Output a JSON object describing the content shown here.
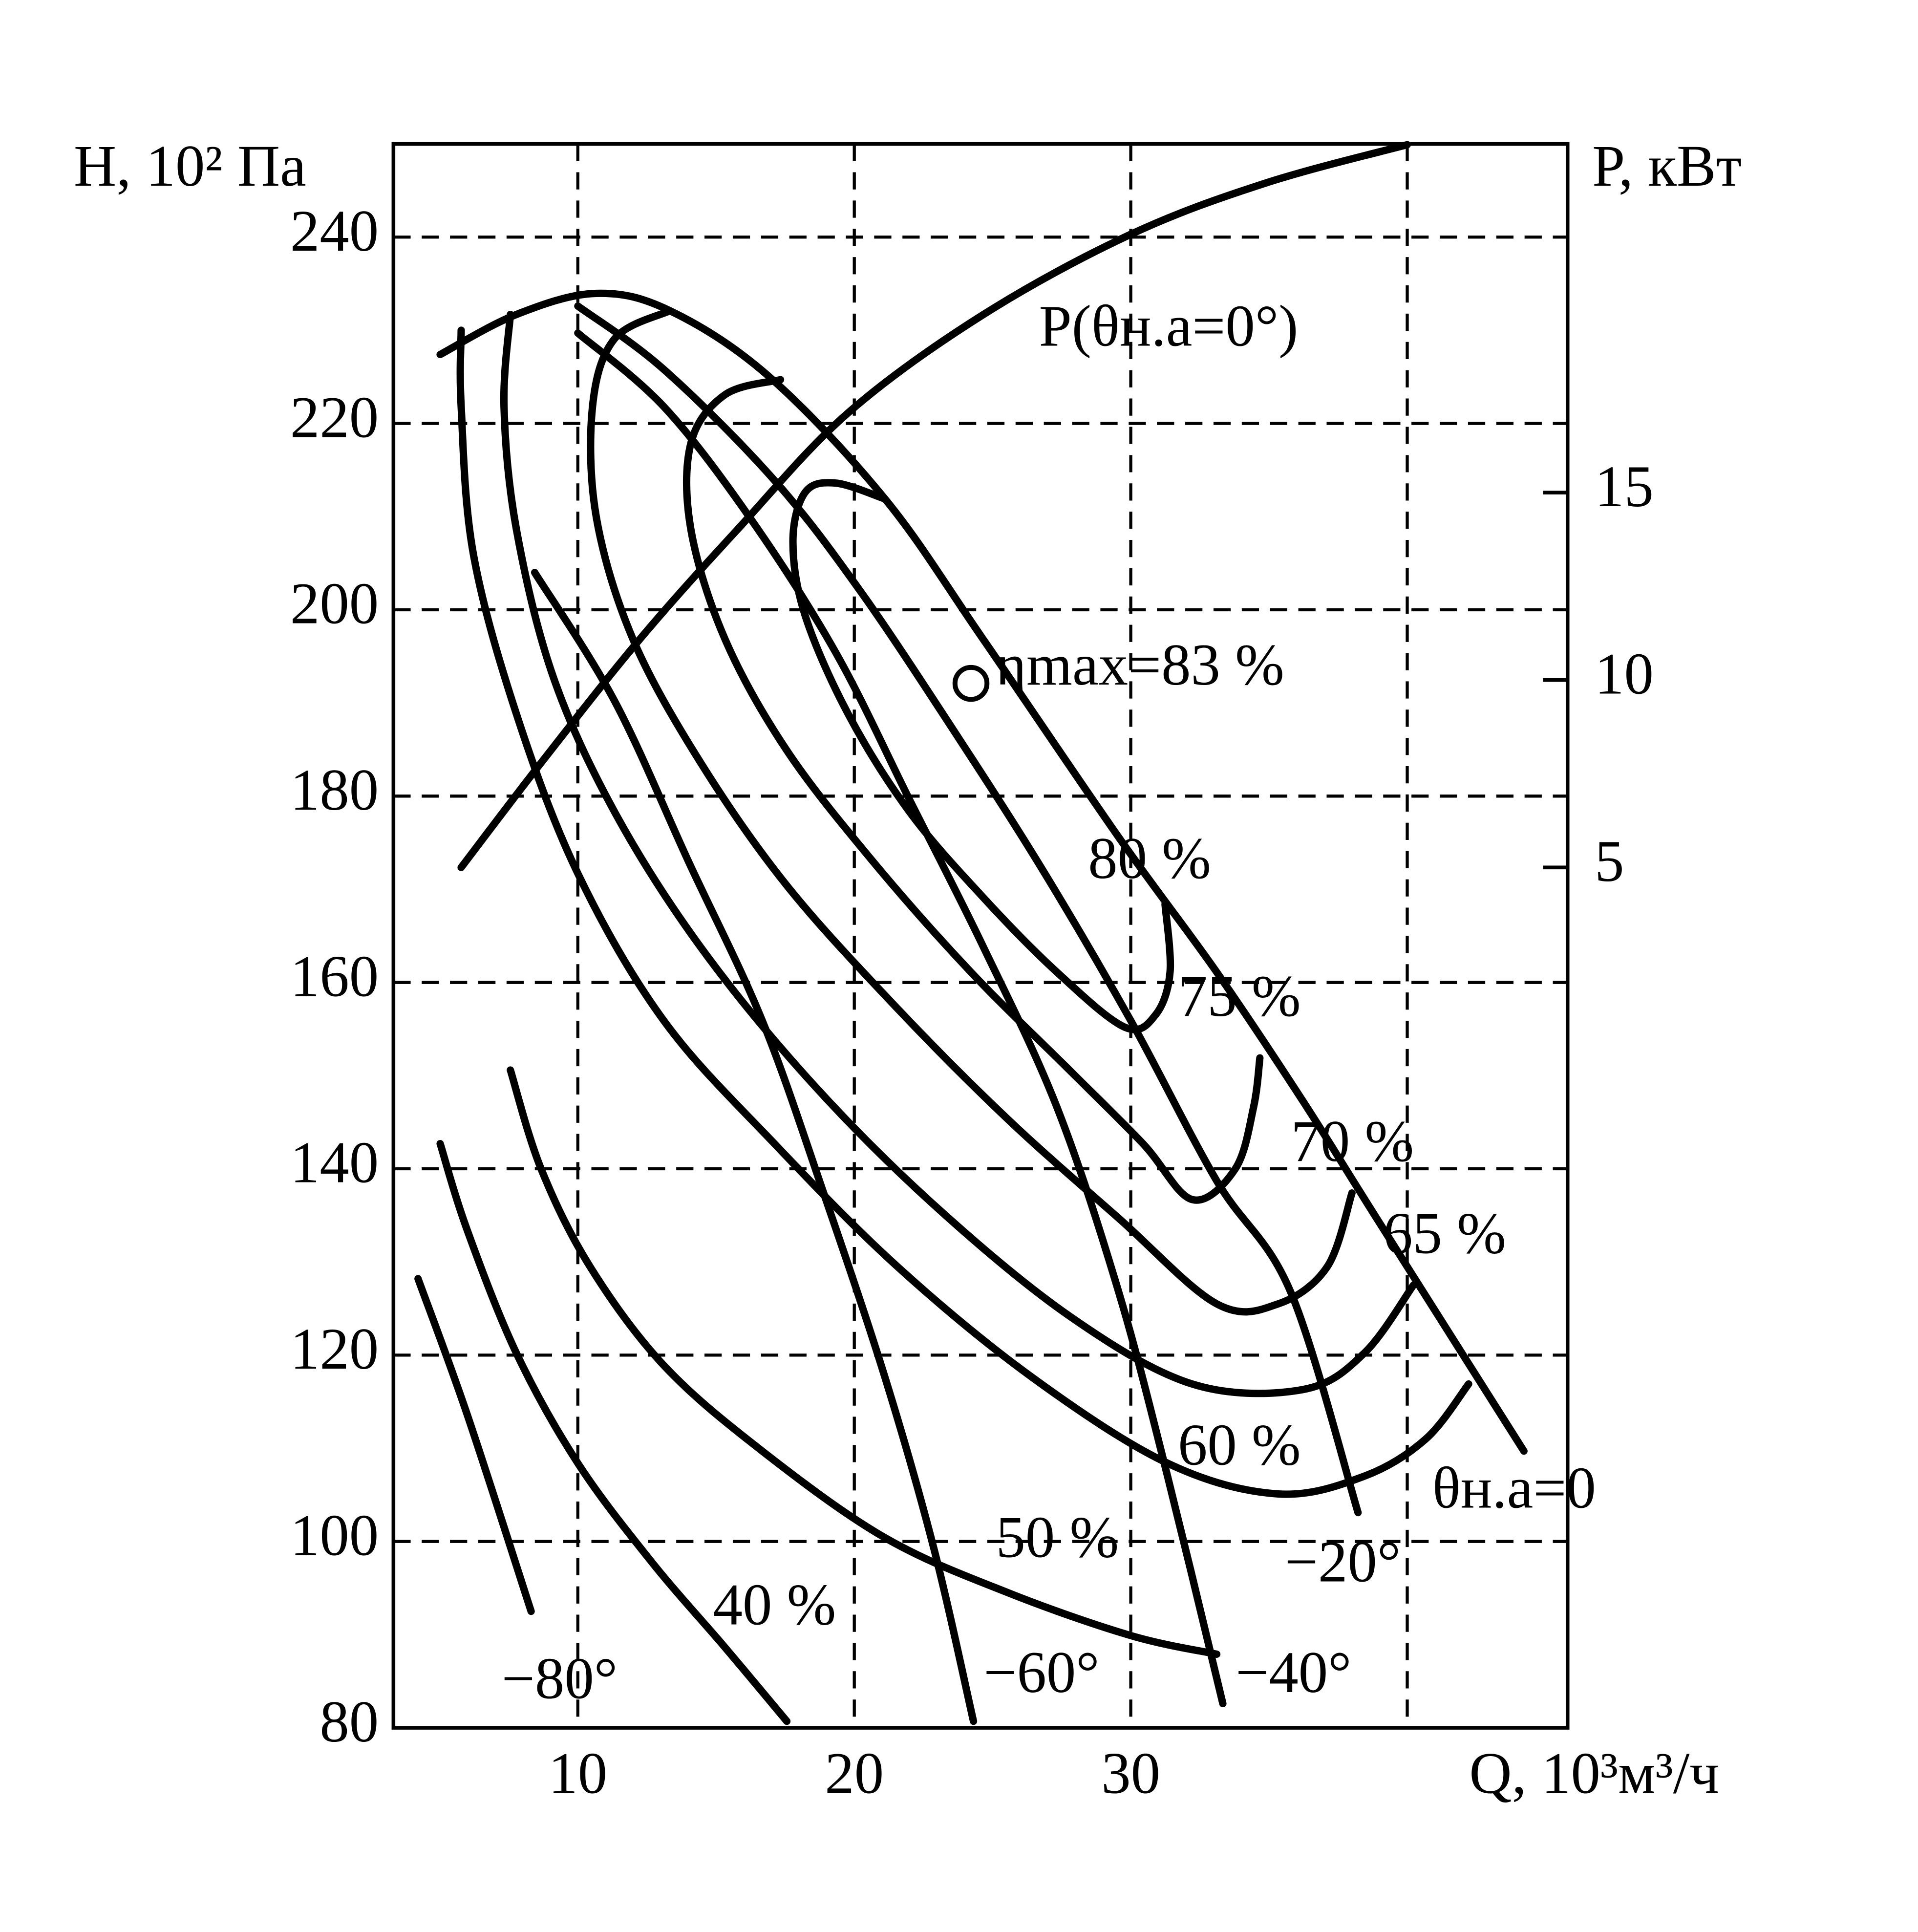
{
  "chart_data": {
    "type": "line",
    "y_label": "H, 10² Па",
    "y2_label": "P, кВт",
    "x_label": "Q, 10³м³/ч",
    "xlim": [
      3.33,
      45.8
    ],
    "xticks": [
      10,
      20,
      30
    ],
    "xgrid": [
      10,
      20,
      30,
      40
    ],
    "ylim": [
      80,
      250
    ],
    "yticks": [
      80,
      100,
      120,
      140,
      160,
      180,
      200,
      220,
      240
    ],
    "y2lim": [
      -17.95,
      24.3
    ],
    "y2ticks": [
      5,
      10,
      15
    ],
    "grid": true,
    "color": "#000000",
    "series": [
      {
        "name": "θн.а=0",
        "x": [
          5.02,
          7.78,
          10.67,
          13.33,
          16.89,
          21.11,
          24.67,
          29.56,
          33.11,
          36.22,
          38.89,
          44.22
        ],
        "y": [
          227.4,
          231.7,
          233.96,
          232.1,
          225.1,
          211.9,
          196.8,
          175.6,
          161.1,
          147.3,
          134.7,
          109.7
        ]
      },
      {
        "name": "−20°",
        "x": [
          10,
          13.11,
          17.11,
          20.22,
          23.78,
          26.89,
          30,
          33.11,
          35.78,
          38.22
        ],
        "y": [
          232.6,
          225.8,
          213.9,
          202.0,
          186.2,
          171.7,
          155.9,
          138.7,
          126.8,
          103.1
        ]
      },
      {
        "name": "−40°",
        "x": [
          10,
          13.11,
          16.22,
          19.33,
          22,
          24.67,
          27.33,
          29.56,
          31.33,
          33.33
        ],
        "y": [
          229.7,
          221.8,
          209.9,
          195.4,
          179.6,
          163.8,
          146.6,
          126.8,
          107.0,
          82.6
        ]
      },
      {
        "name": "−60°",
        "x": [
          8.44,
          11.33,
          14,
          16.67,
          18.89,
          21.11,
          22.89,
          24.31
        ],
        "y": [
          204.0,
          190.2,
          173.0,
          155.9,
          137.4,
          117.6,
          99.1,
          80.7
        ]
      },
      {
        "name": "−80°",
        "x": [
          4.22,
          6.0,
          8.31
        ],
        "y": [
          128.2,
          113.6,
          92.5
        ]
      },
      {
        "name": "80 %",
        "x": [
          21.11,
          19.33,
          18.22,
          17.78,
          18.22,
          19.78,
          22,
          24.67,
          27.33,
          29.78,
          30.89,
          31.42,
          31.24
        ],
        "y": [
          211.9,
          213.6,
          212.6,
          207.3,
          199.4,
          188.8,
          178.3,
          169.1,
          161.1,
          155.2,
          156.5,
          161.1,
          168.4
        ]
      },
      {
        "name": "75 %",
        "x": [
          17.33,
          15.33,
          14.09,
          14.09,
          15.33,
          17.56,
          20.67,
          24.22,
          27.78,
          30.44,
          32.22,
          33.78,
          34.44,
          34.67
        ],
        "y": [
          224.7,
          223.1,
          217.9,
          208.6,
          196.8,
          184.9,
          173.0,
          161.1,
          150.6,
          142.7,
          136.7,
          140.0,
          146.6,
          151.9
        ]
      },
      {
        "name": "70 %",
        "x": [
          13.33,
          11.33,
          10.53,
          10.67,
          12,
          14.44,
          17.56,
          21.56,
          25.56,
          29.56,
          33.11,
          35.33,
          37.11,
          38
        ],
        "y": [
          232.1,
          229.1,
          221.8,
          209.9,
          196.8,
          183.6,
          170.4,
          157.2,
          145.3,
          134.7,
          125.5,
          125.5,
          129.5,
          137.4
        ]
      },
      {
        "name": "65 %",
        "x": [
          7.56,
          7.33,
          7.78,
          9.11,
          11.33,
          14.44,
          18.44,
          22.89,
          27.78,
          32.22,
          36.22,
          38.44,
          40.22
        ],
        "y": [
          231.7,
          221.8,
          208.6,
          192.8,
          178.3,
          163.8,
          149.3,
          136.1,
          124.2,
          116.9,
          116.3,
          120.2,
          127.5
        ]
      },
      {
        "name": "60 %",
        "x": [
          5.78,
          5.78,
          6.22,
          7.78,
          10,
          13.11,
          17.11,
          21.56,
          26.44,
          31.33,
          35.33,
          38.44,
          40.67,
          42.22
        ],
        "y": [
          230.0,
          221.8,
          206.0,
          188.8,
          171.7,
          155.9,
          142.7,
          129.5,
          117.6,
          108.4,
          105.1,
          107.0,
          111.0,
          116.9
        ]
      },
      {
        "name": "50 %",
        "x": [
          7.56,
          8.67,
          10.44,
          13.11,
          16.67,
          21.11,
          25.56,
          30,
          33.11
        ],
        "y": [
          150.6,
          140.0,
          129.5,
          118.9,
          109.7,
          100.4,
          94.5,
          89.9,
          87.9
        ]
      },
      {
        "name": "40 %",
        "x": [
          5.02,
          6.0,
          7.78,
          10,
          12.67,
          15.33,
          17.56
        ],
        "y": [
          142.7,
          133.4,
          120.2,
          108.4,
          97.8,
          88.6,
          80.7
        ]
      },
      {
        "name": "P(θн.а=0°)",
        "axis": "y2",
        "x": [
          5.78,
          8.67,
          12.22,
          15.78,
          19.78,
          24.67,
          30,
          34.89,
          40
        ],
        "y": [
          5,
          7.79,
          11.07,
          14.02,
          17.13,
          19.75,
          21.89,
          23.26,
          24.28
        ]
      }
    ],
    "annotations": [
      {
        "text": "ηmax=83 %",
        "x": 24.22,
        "y": 192.1
      }
    ]
  }
}
